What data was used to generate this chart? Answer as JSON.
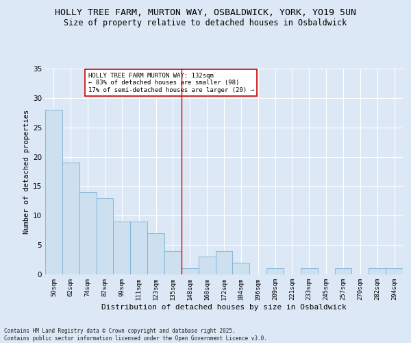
{
  "title": "HOLLY TREE FARM, MURTON WAY, OSBALDWICK, YORK, YO19 5UN",
  "subtitle": "Size of property relative to detached houses in Osbaldwick",
  "xlabel": "Distribution of detached houses by size in Osbaldwick",
  "ylabel": "Number of detached properties",
  "categories": [
    "50sqm",
    "62sqm",
    "74sqm",
    "87sqm",
    "99sqm",
    "111sqm",
    "123sqm",
    "135sqm",
    "148sqm",
    "160sqm",
    "172sqm",
    "184sqm",
    "196sqm",
    "209sqm",
    "221sqm",
    "233sqm",
    "245sqm",
    "257sqm",
    "270sqm",
    "282sqm",
    "294sqm"
  ],
  "values": [
    28,
    19,
    14,
    13,
    9,
    9,
    7,
    4,
    1,
    3,
    4,
    2,
    0,
    1,
    0,
    1,
    0,
    1,
    0,
    1,
    1
  ],
  "bar_color": "#cce0f0",
  "bar_edge_color": "#7bafd4",
  "vline_x": 7.5,
  "vline_color": "#cc0000",
  "annotation_text": "HOLLY TREE FARM MURTON WAY: 132sqm\n← 83% of detached houses are smaller (98)\n17% of semi-detached houses are larger (20) →",
  "annotation_box_color": "#ffffff",
  "annotation_box_edge": "#cc0000",
  "ylim": [
    0,
    35
  ],
  "yticks": [
    0,
    5,
    10,
    15,
    20,
    25,
    30,
    35
  ],
  "background_color": "#dce8f5",
  "grid_color": "#ffffff",
  "title_fontsize": 9.5,
  "subtitle_fontsize": 8.5,
  "xlabel_fontsize": 8,
  "ylabel_fontsize": 7.5,
  "footnote": "Contains HM Land Registry data © Crown copyright and database right 2025.\nContains public sector information licensed under the Open Government Licence v3.0."
}
